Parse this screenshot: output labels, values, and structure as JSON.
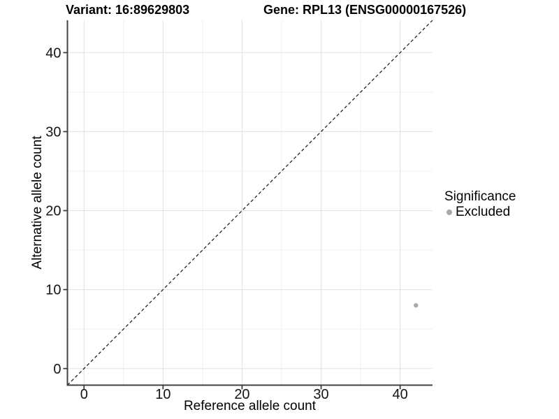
{
  "chart_data": {
    "type": "scatter",
    "title_variant": "Variant: 16:89629803",
    "title_gene": "Gene: RPL13 (ENSG00000167526)",
    "xlabel": "Reference allele count",
    "ylabel": "Alternative allele count",
    "xlim": [
      -2.1,
      44.1
    ],
    "ylim": [
      -2.1,
      44.1
    ],
    "xticks": [
      0,
      10,
      20,
      30,
      40
    ],
    "yticks": [
      0,
      10,
      20,
      30,
      40
    ],
    "xticks_minor": [
      5,
      15,
      25,
      35
    ],
    "yticks_minor": [
      5,
      15,
      25,
      35
    ],
    "grid": "major-and-minor",
    "identity_line": {
      "type": "dashed",
      "slope": 1,
      "intercept": 0,
      "color": "#111111"
    },
    "points": [
      {
        "x": 42,
        "y": 8,
        "significance": "Excluded",
        "color": "#a9a9a9"
      }
    ],
    "legend": {
      "title": "Significance",
      "position": "right",
      "items": [
        {
          "label": "Excluded",
          "color": "#a9a9a9"
        }
      ]
    },
    "colors": {
      "background": "#ffffff",
      "grid_major": "#e3e3e3",
      "grid_minor": "#f1f1f1",
      "axis": "#404040",
      "tick_text": "#141414"
    }
  }
}
